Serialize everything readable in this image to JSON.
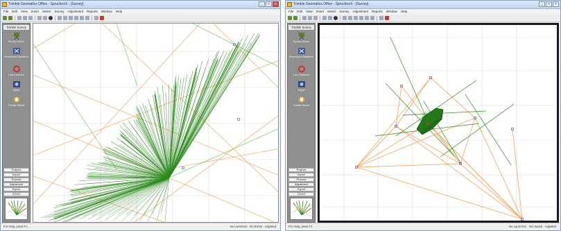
{
  "left_window": {
    "title": "Trimble Geomatics Office - SprucferoX - [Survey]",
    "menu": [
      "File",
      "Edit",
      "View",
      "Insert",
      "Select",
      "Survey",
      "Adjustment",
      "Reports",
      "Window",
      "Help"
    ],
    "panel_title": "Trimble Survey",
    "tools": [
      {
        "label": "Survey Device",
        "icon": "survey-device-icon"
      },
      {
        "label": "Recompute Baselines",
        "icon": "recompute-icon"
      },
      {
        "label": "Loop Closures",
        "icon": "loop-closures-icon"
      },
      {
        "label": "Adjust",
        "icon": "adjust-icon"
      },
      {
        "label": "Trimble Report",
        "icon": "report-icon"
      }
    ],
    "categories": [
      "Projects",
      "Import",
      "Process",
      "Adjustment",
      "Export",
      "COGO"
    ],
    "status": {
      "left": "For Help, press F1",
      "right": "No Lat Errors · No Errors · Adjusted"
    }
  },
  "right_window": {
    "title": "Trimble Geomatics Office - SprucferoX - [Survey]",
    "menu": [
      "File",
      "Edit",
      "View",
      "Insert",
      "Select",
      "Survey",
      "Adjustment",
      "Reports",
      "Window",
      "Help"
    ],
    "panel_title": "Trimble Survey",
    "tools": [
      {
        "label": "Survey Device",
        "icon": "survey-device-icon"
      },
      {
        "label": "Recompute Baselines",
        "icon": "recompute-icon"
      },
      {
        "label": "Loop Closures",
        "icon": "loop-closures-icon"
      },
      {
        "label": "Adjust",
        "icon": "adjust-icon"
      },
      {
        "label": "Trimble Report",
        "icon": "report-icon"
      }
    ],
    "categories": [
      "Projects",
      "Import",
      "Process",
      "Adjustment",
      "Export",
      "COGO"
    ],
    "status": {
      "left": "For Help, press F1",
      "right": "No Lat Errors · Not Saved · Adjusted"
    }
  },
  "colors": {
    "baseline": "#2e8b1f",
    "control": "#f2a45c",
    "grid": "#d7d7d7",
    "window_border": "#8aa0bf",
    "panel": "#8f8f8f"
  }
}
